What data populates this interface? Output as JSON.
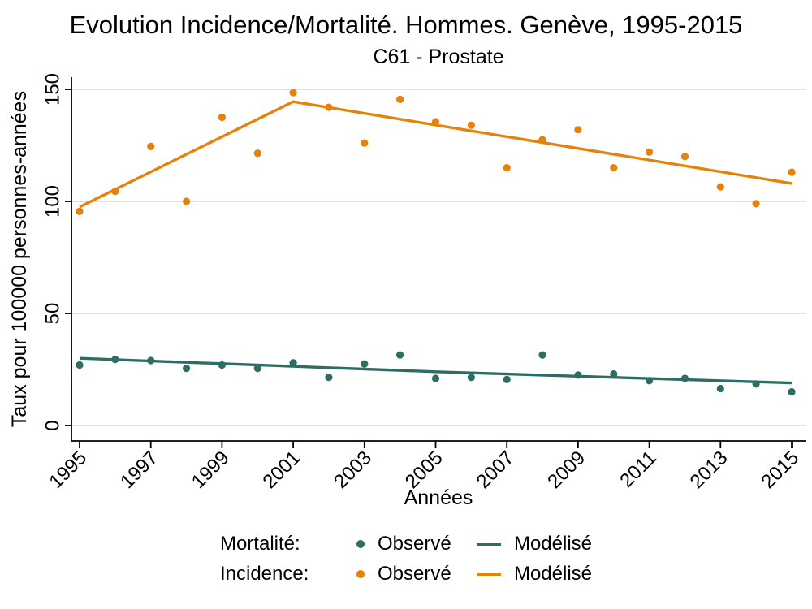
{
  "chart_data": {
    "type": "scatter",
    "title": "Evolution Incidence/Mortalité. Hommes. Genève, 1995-2015",
    "subtitle": "C61 - Prostate",
    "xlabel": "Années",
    "ylabel": "Taux pour 100000 personnes-années",
    "years": [
      1995,
      1996,
      1997,
      1998,
      1999,
      2000,
      2001,
      2002,
      2003,
      2004,
      2005,
      2006,
      2007,
      2008,
      2009,
      2010,
      2011,
      2012,
      2013,
      2014,
      2015
    ],
    "xticks": [
      1995,
      1997,
      1999,
      2001,
      2003,
      2005,
      2007,
      2009,
      2011,
      2013,
      2015
    ],
    "yticks": [
      0,
      50,
      100,
      150
    ],
    "xlim": [
      1994.7,
      2015.4
    ],
    "ylim": [
      0,
      157
    ],
    "grid": true,
    "legend_position": "bottom",
    "series": [
      {
        "id": "mortalite-observe",
        "group": "Mortalité",
        "name": "Observé",
        "style": "scatter",
        "color": "#2D6E64",
        "y": [
          27,
          29.5,
          29,
          25.5,
          27,
          25.5,
          28,
          21.5,
          27.5,
          31.5,
          21,
          21.5,
          20.5,
          31.5,
          22.5,
          23,
          20,
          21,
          16.5,
          18.5,
          15
        ]
      },
      {
        "id": "mortalite-modelise",
        "group": "Mortalité",
        "name": "Modélisé",
        "style": "line",
        "color": "#2D6E64",
        "points": [
          [
            1995,
            30
          ],
          [
            2005,
            24
          ],
          [
            2015,
            19
          ]
        ]
      },
      {
        "id": "incidence-observe",
        "group": "Incidence",
        "name": "Observé",
        "style": "scatter",
        "color": "#E5820B",
        "y": [
          95.5,
          104.5,
          124.5,
          100,
          137.5,
          121.5,
          148.5,
          142,
          126,
          145.5,
          135.5,
          134,
          115,
          127.5,
          132,
          115,
          122,
          120,
          106.5,
          99,
          113
        ]
      },
      {
        "id": "incidence-modelise",
        "group": "Incidence",
        "name": "Modélisé",
        "style": "line",
        "color": "#E5820B",
        "points": [
          [
            1995,
            97.5
          ],
          [
            2001,
            144.5
          ],
          [
            2015,
            108
          ]
        ]
      }
    ],
    "legend": {
      "rows": [
        {
          "label": "Mortalité:",
          "observed": "Observé",
          "modeled": "Modélisé",
          "color": "#2D6E64"
        },
        {
          "label": "Incidence:",
          "observed": "Observé",
          "modeled": "Modélisé",
          "color": "#E5820B"
        }
      ]
    }
  }
}
